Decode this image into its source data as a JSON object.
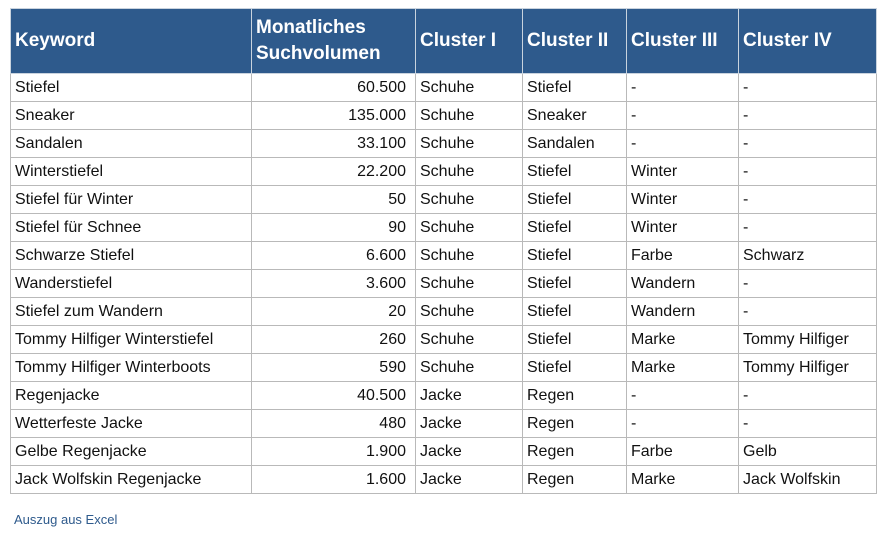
{
  "table": {
    "headers": [
      "Keyword",
      "Monatliches Suchvolumen",
      "Cluster I",
      "Cluster II",
      "Cluster III",
      "Cluster IV"
    ],
    "rows": [
      [
        "Stiefel",
        "60.500",
        "Schuhe",
        "Stiefel",
        "-",
        "-"
      ],
      [
        "Sneaker",
        "135.000",
        "Schuhe",
        "Sneaker",
        "-",
        "-"
      ],
      [
        "Sandalen",
        "33.100",
        "Schuhe",
        "Sandalen",
        "-",
        "-"
      ],
      [
        "Winterstiefel",
        "22.200",
        "Schuhe",
        "Stiefel",
        "Winter",
        "-"
      ],
      [
        "Stiefel für Winter",
        "50",
        "Schuhe",
        "Stiefel",
        "Winter",
        "-"
      ],
      [
        "Stiefel für Schnee",
        "90",
        "Schuhe",
        "Stiefel",
        "Winter",
        "-"
      ],
      [
        "Schwarze Stiefel",
        "6.600",
        "Schuhe",
        "Stiefel",
        "Farbe",
        "Schwarz"
      ],
      [
        "Wanderstiefel",
        "3.600",
        "Schuhe",
        "Stiefel",
        "Wandern",
        "-"
      ],
      [
        "Stiefel zum Wandern",
        "20",
        "Schuhe",
        "Stiefel",
        "Wandern",
        "-"
      ],
      [
        "Tommy Hilfiger Winterstiefel",
        "260",
        "Schuhe",
        "Stiefel",
        "Marke",
        "Tommy Hilfiger"
      ],
      [
        "Tommy Hilfiger Winterboots",
        "590",
        "Schuhe",
        "Stiefel",
        "Marke",
        "Tommy Hilfiger"
      ],
      [
        "Regenjacke",
        "40.500",
        "Jacke",
        "Regen",
        "-",
        "-"
      ],
      [
        "Wetterfeste Jacke",
        "480",
        "Jacke",
        "Regen",
        "-",
        "-"
      ],
      [
        "Gelbe Regenjacke",
        "1.900",
        "Jacke",
        "Regen",
        "Farbe",
        "Gelb"
      ],
      [
        "Jack Wolfskin Regenjacke",
        "1.600",
        "Jacke",
        "Regen",
        "Marke",
        "Jack Wolfskin"
      ]
    ]
  },
  "caption": "Auszug aus Excel",
  "colors": {
    "header_bg": "#2e5a8c",
    "header_text": "#ffffff",
    "caption_text": "#2e5a8c",
    "grid": "#b9b9b9"
  }
}
